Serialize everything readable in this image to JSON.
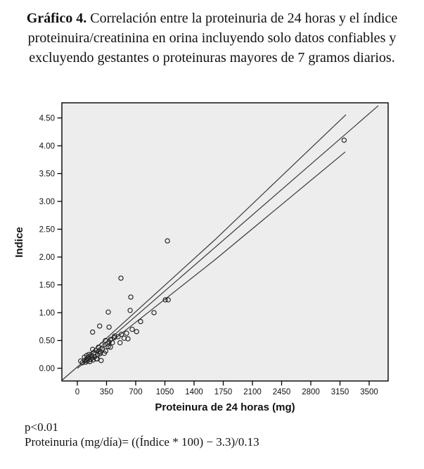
{
  "title": {
    "prefix": "Gráfico 4.",
    "rest": " Correlación entre la proteinuria de 24 horas y el índice proteinuira/creatinina en orina incluyendo solo datos confiables y excluyendo gestantes o proteinuras mayores de 7 gramos diarios."
  },
  "footer": {
    "line1": "p<0.01",
    "line2": "Proteinuria (mg/día)= ((Índice * 100) − 3.3)/0.13"
  },
  "chart_data": {
    "type": "scatter",
    "xlabel": "Proteinura de 24 horas (mg)",
    "ylabel": "Indice",
    "xlim": [
      -185,
      3728
    ],
    "ylim": [
      -0.23,
      4.77
    ],
    "grid": false,
    "legend": "none",
    "plot_bg": "#ededed",
    "marker": {
      "shape": "open-circle",
      "color": "#222222"
    },
    "line_color": "#3a3a3a",
    "x_ticks": [
      {
        "v": 0,
        "label": "0"
      },
      {
        "v": 350,
        "label": "350"
      },
      {
        "v": 700,
        "label": "700"
      },
      {
        "v": 1050,
        "label": "1050"
      },
      {
        "v": 1400,
        "label": "1400"
      },
      {
        "v": 1750,
        "label": "1750"
      },
      {
        "v": 2100,
        "label": "2100"
      },
      {
        "v": 2450,
        "label": "2450"
      },
      {
        "v": 2800,
        "label": "2800"
      },
      {
        "v": 3150,
        "label": "3150"
      },
      {
        "v": 3500,
        "label": "3500"
      }
    ],
    "y_ticks": [
      {
        "v": 0.0,
        "label": "0.00"
      },
      {
        "v": 0.5,
        "label": "0.50"
      },
      {
        "v": 1.0,
        "label": "1.00"
      },
      {
        "v": 1.5,
        "label": "1.50"
      },
      {
        "v": 2.0,
        "label": "2.00"
      },
      {
        "v": 2.5,
        "label": "2.50"
      },
      {
        "v": 3.0,
        "label": "3.00"
      },
      {
        "v": 3.5,
        "label": "3.50"
      },
      {
        "v": 4.0,
        "label": "4.00"
      },
      {
        "v": 4.5,
        "label": "4.50"
      }
    ],
    "points": [
      [
        40,
        0.13
      ],
      [
        60,
        0.1
      ],
      [
        85,
        0.2
      ],
      [
        90,
        0.14
      ],
      [
        100,
        0.11
      ],
      [
        110,
        0.15
      ],
      [
        112,
        0.23
      ],
      [
        120,
        0.13
      ],
      [
        130,
        0.18
      ],
      [
        140,
        0.25
      ],
      [
        150,
        0.12
      ],
      [
        160,
        0.16
      ],
      [
        170,
        0.22
      ],
      [
        180,
        0.19
      ],
      [
        183,
        0.34
      ],
      [
        190,
        0.15
      ],
      [
        200,
        0.28
      ],
      [
        210,
        0.21
      ],
      [
        225,
        0.32
      ],
      [
        230,
        0.17
      ],
      [
        238,
        0.17
      ],
      [
        240,
        0.24
      ],
      [
        253,
        0.38
      ],
      [
        260,
        0.3
      ],
      [
        270,
        0.26
      ],
      [
        280,
        0.29
      ],
      [
        285,
        0.14
      ],
      [
        295,
        0.42
      ],
      [
        300,
        0.35
      ],
      [
        323,
        0.27
      ],
      [
        337,
        0.5
      ],
      [
        340,
        0.31
      ],
      [
        365,
        0.44
      ],
      [
        370,
        0.39
      ],
      [
        380,
        0.47
      ],
      [
        396,
        0.38
      ],
      [
        400,
        0.52
      ],
      [
        420,
        0.46
      ],
      [
        440,
        0.55
      ],
      [
        183,
        0.65
      ],
      [
        267,
        0.76
      ],
      [
        380,
        0.74
      ],
      [
        447,
        0.58
      ],
      [
        489,
        0.57
      ],
      [
        512,
        0.46
      ],
      [
        529,
        0.61
      ],
      [
        561,
        0.54
      ],
      [
        590,
        0.63
      ],
      [
        607,
        0.53
      ],
      [
        658,
        0.7
      ],
      [
        710,
        0.66
      ],
      [
        371,
        1.01
      ],
      [
        523,
        1.62
      ],
      [
        633,
        1.04
      ],
      [
        641,
        1.28
      ],
      [
        759,
        0.84
      ],
      [
        919,
        1.0
      ],
      [
        1055,
        1.23
      ],
      [
        1090,
        1.23
      ],
      [
        1080,
        2.29
      ],
      [
        3200,
        4.1
      ]
    ],
    "lines": {
      "fit": [
        [
          -185,
          -0.215
        ],
        [
          3610,
          4.72
        ]
      ],
      "upper": [
        [
          84,
          0.18
        ],
        [
          1650,
          2.31
        ],
        [
          3222,
          4.56
        ]
      ],
      "lower": [
        [
          0,
          0.0
        ],
        [
          1650,
          1.95
        ],
        [
          3213,
          3.89
        ]
      ]
    }
  }
}
